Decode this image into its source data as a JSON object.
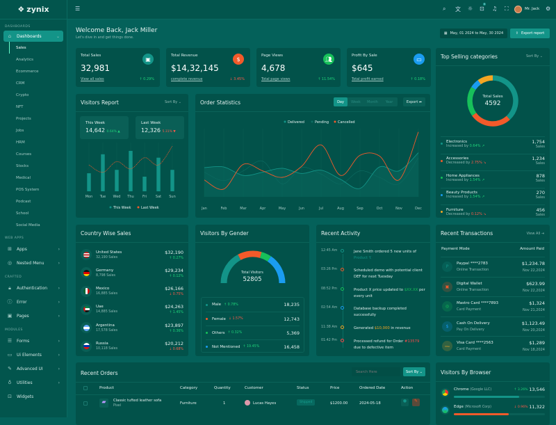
{
  "brand": "zynix",
  "sidebar": {
    "sections": [
      "DASHBOARDS",
      "WEB APPS",
      "CRAFTED",
      "MODULES"
    ],
    "dashboards": {
      "label": "Dashboards",
      "icon": "home-icon"
    },
    "sub": [
      "Sales",
      "Analytics",
      "Ecommerce",
      "CRM",
      "Crypto",
      "NFT",
      "Projects",
      "Jobs",
      "HRM",
      "Courses",
      "Stocks",
      "Medical",
      "POS System",
      "Podcast",
      "School",
      "Social Media"
    ],
    "webapps": [
      {
        "label": "Apps",
        "icon": "⊞"
      },
      {
        "label": "Nested Menu",
        "icon": "◎"
      }
    ],
    "crafted": [
      {
        "label": "Authentication",
        "icon": "🔒︎"
      },
      {
        "label": "Error",
        "icon": "ⓘ"
      },
      {
        "label": "Pages",
        "icon": "▣"
      }
    ],
    "modules": [
      {
        "label": "Forms",
        "icon": "☰",
        "chev": true
      },
      {
        "label": "Ui Elements",
        "icon": "▭",
        "chev": true
      },
      {
        "label": "Advanced UI",
        "icon": "✎",
        "chev": true
      },
      {
        "label": "Utilities",
        "icon": "♁",
        "chev": true
      },
      {
        "label": "Widgets",
        "icon": "⊡",
        "chev": false
      }
    ]
  },
  "header": {
    "user": "Mr. Jack",
    "mail_badge": "5"
  },
  "welcome": {
    "title": "Welcome Back, Jack Miller",
    "subtitle": "Let's dive in and get things done.",
    "date_range": "May, 01 2024 to May, 30 2024",
    "export": "Export report"
  },
  "stats": [
    {
      "label": "Total Sales",
      "value": "32,981",
      "link": "View all sales",
      "pct": "0.29%",
      "dir": "up",
      "color": "#139488",
      "icon": "▣"
    },
    {
      "label": "Total Revenue",
      "value": "$14,32,145",
      "link": "complete revenue",
      "pct": "3.45%",
      "dir": "down",
      "color": "#f35a2a",
      "icon": "$"
    },
    {
      "label": "Page Views",
      "value": "4,678",
      "link": "Total page views",
      "pct": "11.54%",
      "dir": "up",
      "color": "#17c05a",
      "icon": "👥︎"
    },
    {
      "label": "Profit By Sale",
      "value": "$645",
      "link": "Total profit earned",
      "pct": "0.18%",
      "dir": "up",
      "color": "#1a9cf0",
      "icon": "▭"
    }
  ],
  "top_selling": {
    "title": "Top Selling categories",
    "sort": "Sort By",
    "center_label": "Total Sales",
    "center_value": "4592",
    "items": [
      {
        "name": "Electronics",
        "trend": "Increased by",
        "pct": "0.64%",
        "dir": "up",
        "value": "1,754",
        "raw": 1754,
        "unit": "Sales",
        "color": "#139488"
      },
      {
        "name": "Accessories",
        "trend": "Decreased by",
        "pct": "2.75%",
        "dir": "down",
        "value": "1,234",
        "raw": 1234,
        "unit": "Sales",
        "color": "#f35a2a"
      },
      {
        "name": "Home Appliances",
        "trend": "Increased by",
        "pct": "1.54%",
        "dir": "up",
        "value": "878",
        "raw": 878,
        "unit": "Sales",
        "color": "#17c05a"
      },
      {
        "name": "Beauty Products",
        "trend": "Increased by",
        "pct": "1.54%",
        "dir": "up",
        "value": "270",
        "raw": 270,
        "unit": "Sales",
        "color": "#1a9cf0"
      },
      {
        "name": "Furniture",
        "trend": "Decreased by",
        "pct": "0.12%",
        "dir": "down",
        "value": "456",
        "raw": 456,
        "unit": "Sales",
        "color": "#f5a623"
      }
    ]
  },
  "visitors_report": {
    "title": "Visitors Report",
    "sort": "Sort By",
    "this_week_label": "This Week",
    "this_week": "14,642",
    "this_week_pct": "0.64%",
    "last_week_label": "Last Week",
    "last_week": "12,326",
    "last_week_pct": "5.31%"
  },
  "order_stats": {
    "title": "Order Statistics",
    "tabs": [
      "Day",
      "Week",
      "Month",
      "Year"
    ],
    "export": "Export"
  },
  "chart_data": [
    {
      "type": "bar",
      "categories": [
        "Mon",
        "Tue",
        "Wed",
        "Thu",
        "Fri",
        "Sat",
        "Sun"
      ],
      "series": [
        {
          "name": "This Week",
          "values": [
            37,
            76,
            44,
            83,
            30,
            69,
            44
          ],
          "color": "#139488"
        },
        {
          "name": "Last Week",
          "type": "line",
          "values": [
            54,
            39,
            61,
            46,
            69,
            54,
            93
          ],
          "color": "#f35a2a"
        }
      ],
      "ylim": [
        0,
        100
      ],
      "legend": "bottom"
    },
    {
      "type": "line",
      "categories": [
        "Jan",
        "Feb",
        "Mar",
        "Apr",
        "May",
        "Jun",
        "Jul",
        "Aug",
        "Sep",
        "Oct",
        "Nov",
        "Dec"
      ],
      "series": [
        {
          "name": "Delivered",
          "values": [
            45,
            46,
            33,
            38,
            44,
            36,
            41,
            27,
            13,
            46,
            40,
            68
          ],
          "color": "#139488"
        },
        {
          "name": "Pending",
          "values": [
            38,
            25,
            40,
            55,
            20,
            45,
            35,
            20,
            40,
            30,
            20,
            60
          ],
          "color": "#0f6e64"
        },
        {
          "name": "Cancelled",
          "values": [
            26,
            12,
            50,
            40,
            30,
            47,
            80,
            33,
            64,
            63,
            26,
            100
          ],
          "color": "#f35a2a"
        }
      ],
      "ylim": [
        0,
        105
      ],
      "legend": "top"
    }
  ],
  "country": {
    "title": "Country Wise Sales",
    "items": [
      {
        "name": "United States",
        "sales": "32,190 Sales",
        "amount": "$32,190",
        "pct": "0.27%",
        "dir": "up",
        "flag": "us"
      },
      {
        "name": "Germany",
        "sales": "8,798 Sales",
        "amount": "$29,234",
        "pct": "0.12%",
        "dir": "up",
        "flag": "de"
      },
      {
        "name": "Mexico",
        "sales": "16,885 Sales",
        "amount": "$26,166",
        "pct": "0.75%",
        "dir": "down",
        "flag": "mx"
      },
      {
        "name": "Uae",
        "sales": "14,885 Sales",
        "amount": "$24,263",
        "pct": "1.45%",
        "dir": "up",
        "flag": "ae"
      },
      {
        "name": "Argentina",
        "sales": "17,578 Sales",
        "amount": "$23,897",
        "pct": "0.36%",
        "dir": "up",
        "flag": "ar"
      },
      {
        "name": "Russia",
        "sales": "10,118 Sales",
        "amount": "$20,212",
        "pct": "0.68%",
        "dir": "down",
        "flag": "ru"
      }
    ]
  },
  "gender": {
    "title": "Visitors By Gender",
    "center_label": "Total Visitors",
    "center_value": "52805",
    "items": [
      {
        "name": "Male",
        "pct": "0.78%",
        "dir": "up",
        "value": "18,235",
        "raw": 18235,
        "color": "#139488"
      },
      {
        "name": "Female",
        "pct": "1.57%",
        "dir": "down",
        "value": "12,743",
        "raw": 12743,
        "color": "#f35a2a"
      },
      {
        "name": "Others",
        "pct": "0.32%",
        "dir": "up",
        "value": "5,369",
        "raw": 5369,
        "color": "#17c05a"
      },
      {
        "name": "Not Mentioned",
        "pct": "19.45%",
        "dir": "up",
        "value": "16,458",
        "raw": 16458,
        "color": "#1a9cf0"
      }
    ]
  },
  "activity": {
    "title": "Recent Activity",
    "items": [
      {
        "time": "12:45 Am",
        "pre": "Jane Smith ordered 5 new units of ",
        "hl": "Product Y.",
        "post": "",
        "color": "#139488"
      },
      {
        "time": "03:26 Pm",
        "pre": "Scheduled demo with potential client DEF for next Tuesday",
        "hl": "",
        "post": "",
        "color": "#f35a2a"
      },
      {
        "time": "08:52 Pm",
        "pre": "Product X price updated to ",
        "hl": "$XX.XX",
        "post": " per every unit",
        "color": "#17c05a"
      },
      {
        "time": "02:54 Am",
        "pre": "Database backup completed successfully",
        "hl": "",
        "post": "",
        "color": "#1a9cf0"
      },
      {
        "time": "11:38 Am",
        "pre": "Generated ",
        "hl": "$10,000",
        "post": " in revenue",
        "color": "#f5a623"
      },
      {
        "time": "01:42 Pm",
        "pre": "Processed refund for Order ",
        "hl": "#13579",
        "post": " due to defective item",
        "color": "#ff4a4a"
      }
    ]
  },
  "transactions": {
    "title": "Recent Transactions",
    "view_all": "View All",
    "col1": "Payment Mode",
    "col2": "Amount Paid",
    "items": [
      {
        "name": "Paypal ****2783",
        "type": "Online Transaction",
        "amount": "$1,234.78",
        "date": "Nov 22,2024",
        "icon": "P",
        "color": "#139488"
      },
      {
        "name": "Digital Wallet",
        "type": "Online Transaction",
        "amount": "$623.99",
        "date": "Nov 22,2024",
        "icon": "▣",
        "color": "#f35a2a"
      },
      {
        "name": "Mastro Card ****7893",
        "type": "Card Payment",
        "amount": "$1,324",
        "date": "Nov 21,2024",
        "icon": "◎",
        "color": "#17c05a"
      },
      {
        "name": "Cash On Delivery",
        "type": "Pay On Delivery",
        "amount": "$1,123.49",
        "date": "Nov 20,2024",
        "icon": "$",
        "color": "#1a9cf0"
      },
      {
        "name": "Visa Card ****2563",
        "type": "Card Payment",
        "amount": "$1,289",
        "date": "Nov 18,2024",
        "icon": "VISA",
        "color": "#f5a623"
      }
    ]
  },
  "orders": {
    "title": "Recent Orders",
    "search_placeholder": "Search Here",
    "sort": "Sort By",
    "columns": [
      "Product",
      "Category",
      "Quantity",
      "Customer",
      "Status",
      "Price",
      "Ordered Date",
      "Action"
    ],
    "rows": [
      {
        "product": "Classic tufted leather sofa",
        "brand": "Pixel",
        "category": "Furniture",
        "qty": "1",
        "customer": "Lucas Hayes",
        "status": "Shipped",
        "price": "$1200.00",
        "date": "2024-05-18"
      }
    ]
  },
  "browser": {
    "title": "Visitors By Browser",
    "items": [
      {
        "name": "Chrome",
        "org": "(Google LLC)",
        "pct": "3.26%",
        "dir": "up",
        "value": "13,546",
        "share": 72,
        "color": "#139488"
      },
      {
        "name": "Edge",
        "org": "(Microsoft Corp)",
        "pct": "0.96%",
        "dir": "down",
        "value": "11,322",
        "share": 60,
        "color": "#f35a2a"
      }
    ]
  }
}
